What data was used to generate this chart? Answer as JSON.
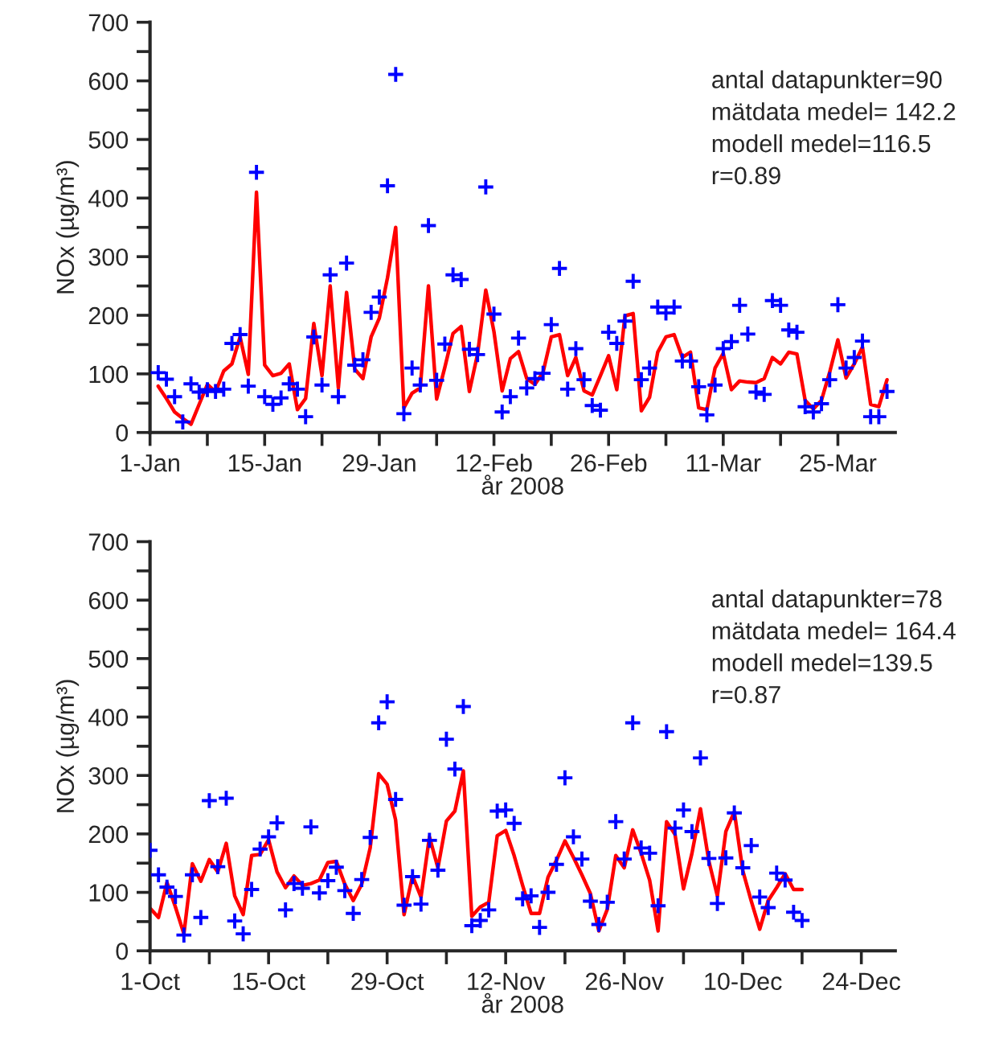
{
  "chart_data": [
    {
      "type": "line",
      "ylabel": "NOx (µg/m³)",
      "xlabel": "år 2008",
      "grid": false,
      "legend": false,
      "annotations": [
        "antal datapunkter=90",
        "mätdata medel= 142.2",
        "modell medel=116.5",
        "r=0.89"
      ],
      "xlim": [
        "2008-01-01",
        "2008-04-01"
      ],
      "ylim": [
        0,
        700
      ],
      "xticks": [
        {
          "value": "2008-01-01",
          "label": "1-Jan"
        },
        {
          "value": "2008-01-08",
          "label": null
        },
        {
          "value": "2008-01-15",
          "label": "15-Jan"
        },
        {
          "value": "2008-01-22",
          "label": null
        },
        {
          "value": "2008-01-29",
          "label": "29-Jan"
        },
        {
          "value": "2008-02-05",
          "label": null
        },
        {
          "value": "2008-02-12",
          "label": "12-Feb"
        },
        {
          "value": "2008-02-19",
          "label": null
        },
        {
          "value": "2008-02-26",
          "label": "26-Feb"
        },
        {
          "value": "2008-03-04",
          "label": null
        },
        {
          "value": "2008-03-11",
          "label": "11-Mar"
        },
        {
          "value": "2008-03-18",
          "label": null
        },
        {
          "value": "2008-03-25",
          "label": "25-Mar"
        }
      ],
      "yticks": [
        0,
        {
          "value": 50,
          "label": null
        },
        100,
        {
          "value": 150,
          "label": null
        },
        200,
        {
          "value": 250,
          "label": null
        },
        300,
        {
          "value": 350,
          "label": null
        },
        400,
        {
          "value": 450,
          "label": null
        },
        500,
        {
          "value": 550,
          "label": null
        },
        600,
        {
          "value": 650,
          "label": null
        },
        700
      ],
      "x": [
        "2008-01-02",
        "2008-01-03",
        "2008-01-04",
        "2008-01-05",
        "2008-01-06",
        "2008-01-07",
        "2008-01-08",
        "2008-01-09",
        "2008-01-10",
        "2008-01-11",
        "2008-01-12",
        "2008-01-13",
        "2008-01-14",
        "2008-01-15",
        "2008-01-16",
        "2008-01-17",
        "2008-01-18",
        "2008-01-19",
        "2008-01-20",
        "2008-01-21",
        "2008-01-22",
        "2008-01-23",
        "2008-01-24",
        "2008-01-25",
        "2008-01-26",
        "2008-01-27",
        "2008-01-28",
        "2008-01-29",
        "2008-01-30",
        "2008-01-31",
        "2008-02-01",
        "2008-02-02",
        "2008-02-03",
        "2008-02-04",
        "2008-02-05",
        "2008-02-06",
        "2008-02-07",
        "2008-02-08",
        "2008-02-09",
        "2008-02-10",
        "2008-02-11",
        "2008-02-12",
        "2008-02-13",
        "2008-02-14",
        "2008-02-15",
        "2008-02-16",
        "2008-02-17",
        "2008-02-18",
        "2008-02-19",
        "2008-02-20",
        "2008-02-21",
        "2008-02-22",
        "2008-02-23",
        "2008-02-24",
        "2008-02-25",
        "2008-02-26",
        "2008-02-27",
        "2008-02-28",
        "2008-02-29",
        "2008-03-01",
        "2008-03-02",
        "2008-03-03",
        "2008-03-04",
        "2008-03-05",
        "2008-03-06",
        "2008-03-07",
        "2008-03-08",
        "2008-03-09",
        "2008-03-10",
        "2008-03-11",
        "2008-03-12",
        "2008-03-13",
        "2008-03-14",
        "2008-03-15",
        "2008-03-16",
        "2008-03-17",
        "2008-03-18",
        "2008-03-19",
        "2008-03-20",
        "2008-03-21",
        "2008-03-22",
        "2008-03-23",
        "2008-03-24",
        "2008-03-25",
        "2008-03-26",
        "2008-03-27",
        "2008-03-28",
        "2008-03-29",
        "2008-03-30",
        "2008-03-31"
      ],
      "series": [
        {
          "type": "scatter",
          "marker": "cross",
          "color": "#0000ff",
          "values": [
            102,
            91,
            61,
            18,
            83,
            69,
            73,
            70,
            74,
            152,
            167,
            79,
            444,
            61,
            48,
            59,
            83,
            74,
            27,
            163,
            81,
            269,
            61,
            289,
            115,
            124,
            205,
            231,
            421,
            611,
            32,
            110,
            81,
            353,
            89,
            151,
            269,
            261,
            142,
            133,
            419,
            202,
            35,
            61,
            161,
            76,
            92,
            101,
            184,
            280,
            74,
            143,
            90,
            46,
            38,
            171,
            152,
            190,
            258,
            90,
            110,
            214,
            204,
            214,
            122,
            122,
            78,
            30,
            81,
            143,
            155,
            217,
            168,
            69,
            65,
            225,
            217,
            175,
            171,
            44,
            35,
            49,
            90,
            218,
            110,
            128,
            156,
            27,
            27,
            70
          ]
        },
        {
          "line_style": "solid",
          "color": "#ff0000",
          "values": [
            79,
            58,
            35,
            24,
            14,
            48,
            82,
            69,
            105,
            117,
            163,
            99,
            410,
            115,
            97,
            101,
            117,
            39,
            58,
            186,
            97,
            250,
            76,
            239,
            108,
            92,
            163,
            195,
            264,
            350,
            42,
            67,
            76,
            250,
            57,
            111,
            169,
            181,
            70,
            134,
            243,
            172,
            71,
            126,
            138,
            92,
            82,
            103,
            163,
            167,
            97,
            128,
            71,
            64,
            97,
            131,
            73,
            199,
            203,
            37,
            60,
            137,
            163,
            167,
            128,
            137,
            42,
            39,
            110,
            135,
            73,
            88,
            86,
            85,
            92,
            128,
            117,
            137,
            134,
            55,
            40,
            55,
            103,
            158,
            93,
            117,
            146,
            48,
            44,
            90
          ]
        }
      ]
    },
    {
      "type": "line",
      "ylabel": "NOx (µg/m³)",
      "xlabel": "år 2008",
      "grid": false,
      "legend": false,
      "annotations": [
        "antal datapunkter=78",
        "mätdata medel= 164.4",
        "modell medel=139.5",
        "r=0.87"
      ],
      "xlim": [
        "2008-10-01",
        "2008-12-28"
      ],
      "ylim": [
        0,
        700
      ],
      "xticks": [
        {
          "value": "2008-10-01",
          "label": "1-Oct"
        },
        {
          "value": "2008-10-08",
          "label": null
        },
        {
          "value": "2008-10-15",
          "label": "15-Oct"
        },
        {
          "value": "2008-10-22",
          "label": null
        },
        {
          "value": "2008-10-29",
          "label": "29-Oct"
        },
        {
          "value": "2008-11-05",
          "label": null
        },
        {
          "value": "2008-11-12",
          "label": "12-Nov"
        },
        {
          "value": "2008-11-19",
          "label": null
        },
        {
          "value": "2008-11-26",
          "label": "26-Nov"
        },
        {
          "value": "2008-12-03",
          "label": null
        },
        {
          "value": "2008-12-10",
          "label": "10-Dec"
        },
        {
          "value": "2008-12-17",
          "label": null
        },
        {
          "value": "2008-12-24",
          "label": "24-Dec"
        }
      ],
      "yticks": [
        0,
        {
          "value": 50,
          "label": null
        },
        100,
        {
          "value": 150,
          "label": null
        },
        200,
        {
          "value": 250,
          "label": null
        },
        300,
        {
          "value": 350,
          "label": null
        },
        400,
        {
          "value": 450,
          "label": null
        },
        500,
        {
          "value": 550,
          "label": null
        },
        600,
        {
          "value": 650,
          "label": null
        },
        700
      ],
      "x": [
        "2008-10-01",
        "2008-10-02",
        "2008-10-03",
        "2008-10-04",
        "2008-10-05",
        "2008-10-06",
        "2008-10-07",
        "2008-10-08",
        "2008-10-09",
        "2008-10-10",
        "2008-10-11",
        "2008-10-12",
        "2008-10-13",
        "2008-10-14",
        "2008-10-15",
        "2008-10-16",
        "2008-10-17",
        "2008-10-18",
        "2008-10-19",
        "2008-10-20",
        "2008-10-21",
        "2008-10-22",
        "2008-10-23",
        "2008-10-24",
        "2008-10-25",
        "2008-10-26",
        "2008-10-27",
        "2008-10-28",
        "2008-10-29",
        "2008-10-30",
        "2008-10-31",
        "2008-11-01",
        "2008-11-02",
        "2008-11-03",
        "2008-11-04",
        "2008-11-05",
        "2008-11-06",
        "2008-11-07",
        "2008-11-08",
        "2008-11-09",
        "2008-11-10",
        "2008-11-11",
        "2008-11-12",
        "2008-11-13",
        "2008-11-14",
        "2008-11-15",
        "2008-11-16",
        "2008-11-17",
        "2008-11-18",
        "2008-11-19",
        "2008-11-20",
        "2008-11-21",
        "2008-11-22",
        "2008-11-23",
        "2008-11-24",
        "2008-11-25",
        "2008-11-26",
        "2008-11-27",
        "2008-11-28",
        "2008-11-29",
        "2008-11-30",
        "2008-12-01",
        "2008-12-02",
        "2008-12-03",
        "2008-12-04",
        "2008-12-05",
        "2008-12-06",
        "2008-12-07",
        "2008-12-08",
        "2008-12-09",
        "2008-12-10",
        "2008-12-11",
        "2008-12-12",
        "2008-12-13",
        "2008-12-14",
        "2008-12-15",
        "2008-12-16",
        "2008-12-17"
      ],
      "series": [
        {
          "type": "scatter",
          "marker": "cross",
          "color": "#0000ff",
          "values": [
            172,
            130,
            109,
            93,
            27,
            130,
            57,
            257,
            144,
            261,
            51,
            29,
            105,
            174,
            195,
            219,
            70,
            115,
            107,
            212,
            99,
            120,
            143,
            103,
            64,
            122,
            194,
            390,
            426,
            259,
            78,
            127,
            80,
            189,
            138,
            362,
            311,
            418,
            43,
            52,
            70,
            239,
            241,
            218,
            89,
            94,
            40,
            100,
            148,
            296,
            195,
            157,
            85,
            45,
            83,
            221,
            157,
            390,
            176,
            167,
            77,
            375,
            210,
            241,
            204,
            330,
            158,
            81,
            159,
            236,
            142,
            180,
            92,
            74,
            133,
            121,
            66,
            52
          ]
        },
        {
          "line_style": "solid",
          "color": "#ff0000",
          "values": [
            73,
            57,
            117,
            75,
            29,
            149,
            119,
            156,
            135,
            184,
            94,
            62,
            163,
            165,
            190,
            135,
            108,
            128,
            112,
            115,
            121,
            151,
            153,
            114,
            86,
            114,
            176,
            303,
            285,
            224,
            62,
            128,
            92,
            195,
            142,
            222,
            239,
            308,
            59,
            75,
            83,
            197,
            206,
            163,
            112,
            64,
            64,
            126,
            155,
            188,
            160,
            130,
            98,
            34,
            71,
            163,
            142,
            207,
            167,
            121,
            34,
            221,
            199,
            106,
            167,
            243,
            153,
            94,
            204,
            238,
            137,
            85,
            37,
            86,
            108,
            132,
            105,
            105
          ]
        }
      ]
    }
  ]
}
